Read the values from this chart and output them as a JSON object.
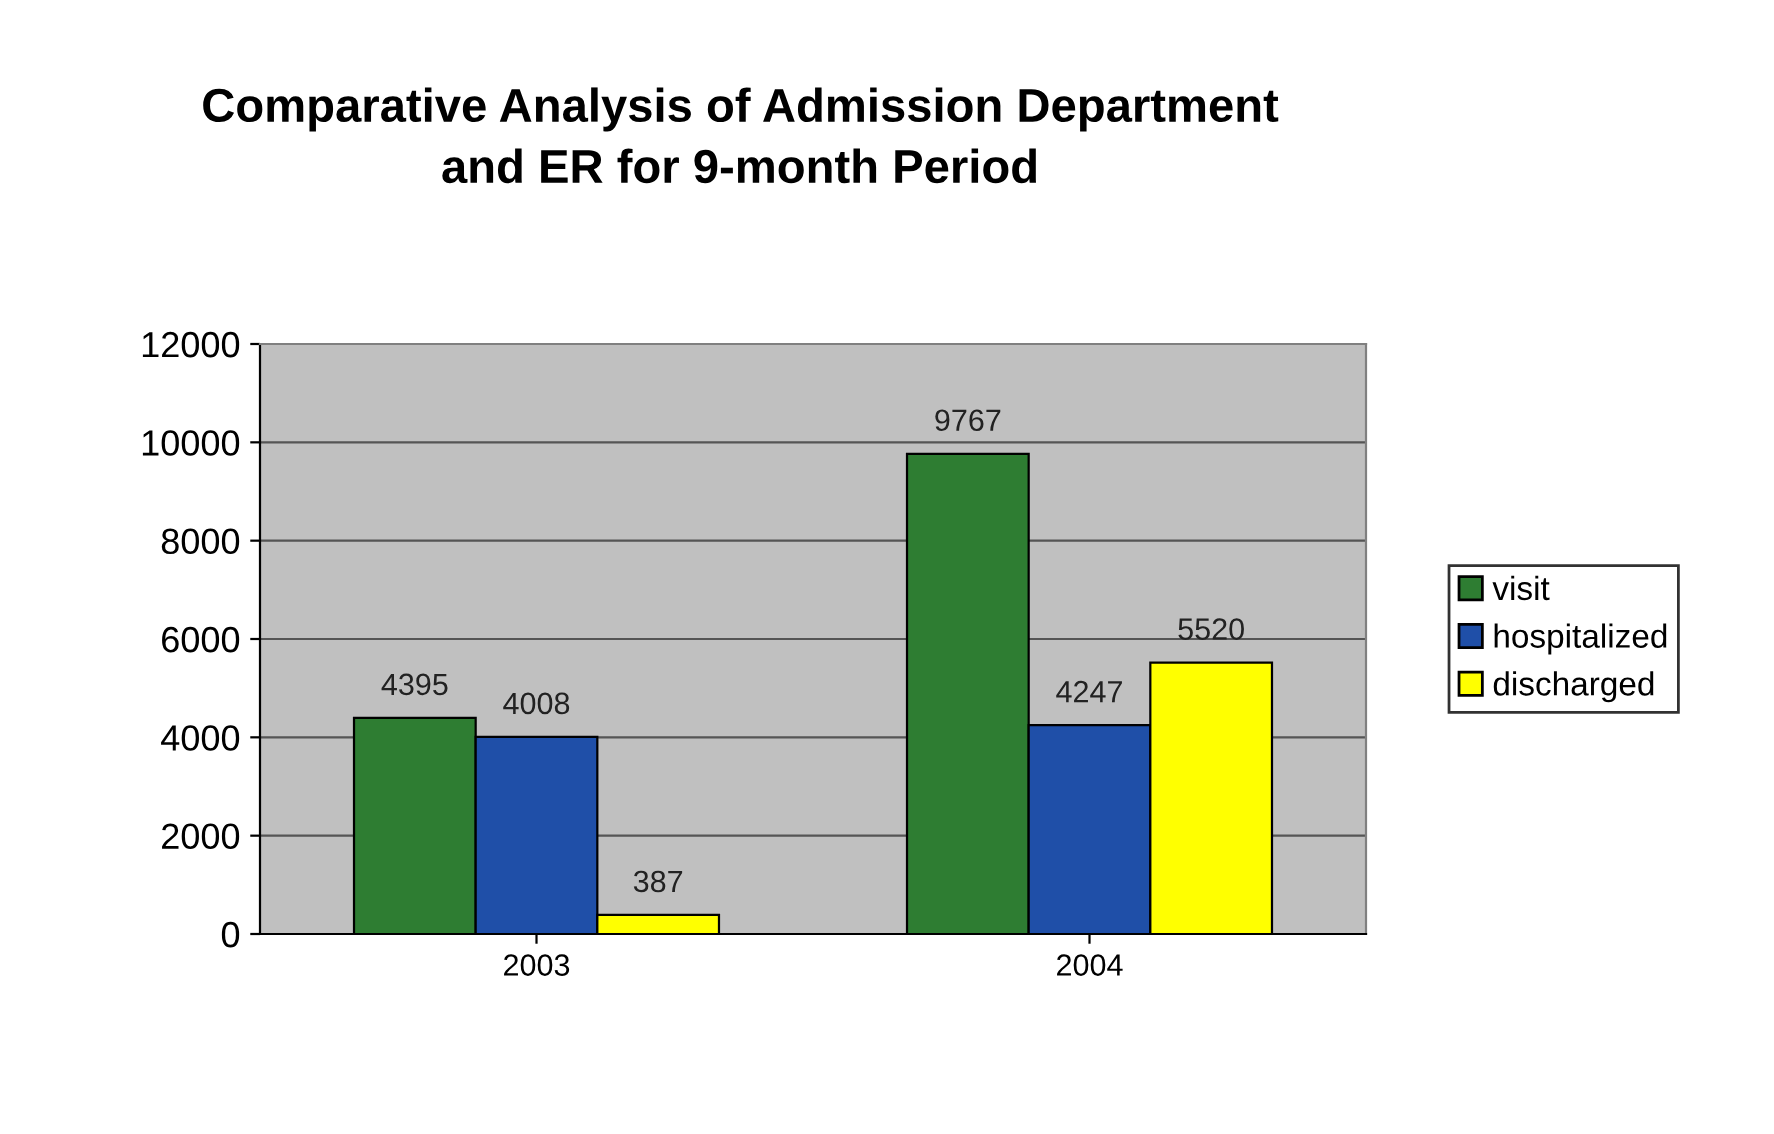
{
  "chart_data": {
    "type": "bar",
    "title": "Comparative Analysis of Admission Department\nand ER for 9-month Period",
    "categories": [
      "2003",
      "2004"
    ],
    "series": [
      {
        "name": "visit",
        "color": "#2e7d32",
        "values": [
          4395,
          9767
        ]
      },
      {
        "name": "hospitalized",
        "color": "#1f4fa8",
        "values": [
          4008,
          4247
        ]
      },
      {
        "name": "discharged",
        "color": "#ffff00",
        "values": [
          387,
          5520
        ]
      }
    ],
    "ylim": [
      0,
      12000
    ],
    "yticks": [
      0,
      2000,
      4000,
      6000,
      8000,
      10000,
      12000
    ],
    "grid": "y",
    "legend": "right",
    "data_labels": true
  }
}
